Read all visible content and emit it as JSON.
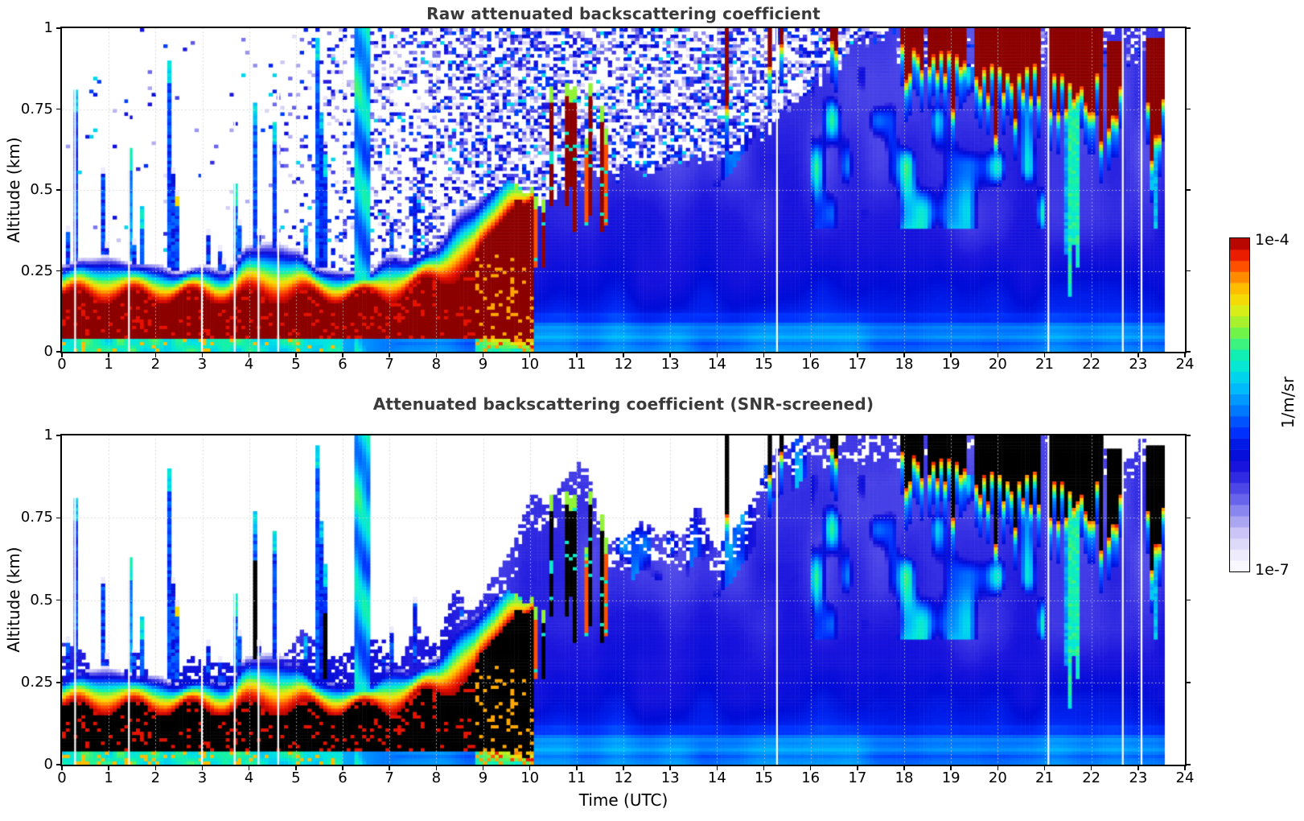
{
  "figure": {
    "xlabel": "Time (UTC)",
    "ylabel": "Altitude (km)",
    "colorbar_top_label": "1e-4",
    "colorbar_bottom_label": "1e-7",
    "colorbar_unit": "1/m/sr"
  },
  "chart_data": {
    "type": "heatmap",
    "panels": [
      {
        "title": "Raw attenuated backscattering coefficient",
        "screened": false
      },
      {
        "title": "Attenuated backscattering coefficient (SNR-screened)",
        "screened": true
      }
    ],
    "x": {
      "label": "Time (UTC)",
      "min": 0,
      "max": 24,
      "ticks": [
        0,
        1,
        2,
        3,
        4,
        5,
        6,
        7,
        8,
        9,
        10,
        11,
        12,
        13,
        14,
        15,
        16,
        17,
        18,
        19,
        20,
        21,
        22,
        23,
        24
      ]
    },
    "y": {
      "label": "Altitude (km)",
      "min": 0,
      "max": 1,
      "ticks": [
        0,
        0.25,
        0.5,
        0.75,
        1
      ]
    },
    "colorbar": {
      "scale": "log",
      "min": 1e-07,
      "max": 0.0001,
      "unit": "1/m/sr",
      "segments": 30,
      "stops": [
        [
          0,
          "#ffffff"
        ],
        [
          0.07,
          "#e4e1fa"
        ],
        [
          0.13,
          "#c0baf4"
        ],
        [
          0.19,
          "#7f7cee"
        ],
        [
          0.25,
          "#4a44e8"
        ],
        [
          0.31,
          "#1a14dd"
        ],
        [
          0.36,
          "#000cd8"
        ],
        [
          0.42,
          "#0033ff"
        ],
        [
          0.48,
          "#0077ff"
        ],
        [
          0.54,
          "#00b4ff"
        ],
        [
          0.6,
          "#00e4e4"
        ],
        [
          0.66,
          "#16f2a6"
        ],
        [
          0.72,
          "#7bf43f"
        ],
        [
          0.78,
          "#d8ee18"
        ],
        [
          0.83,
          "#ffd400"
        ],
        [
          0.88,
          "#ff9000"
        ],
        [
          0.92,
          "#ff4400"
        ],
        [
          0.96,
          "#e30e00"
        ],
        [
          1,
          "#8c0000"
        ]
      ]
    },
    "data_end_hour": 23.57,
    "gap_hours": [
      0.28,
      1.43,
      2.99,
      3.69,
      4.2,
      4.62,
      15.28,
      21.08,
      22.67,
      23.07
    ],
    "boundary_layer": {
      "top_km_by_hour": [
        0.29,
        0.27,
        0.26,
        0.28,
        0.3,
        0.3,
        0.28,
        0.28,
        0.33,
        0.45,
        0.52,
        0.55,
        0.55,
        0.55,
        0.55,
        0.55,
        0.55,
        0.55,
        0.55,
        0.55,
        0.55,
        0.55,
        0.55,
        0.55,
        0.55
      ],
      "core_top_km": 0.17,
      "core_base_km": 0.045,
      "decay_start_hour": 8.8,
      "decay_duration_h": 1.3
    },
    "solid_top_by_hour": [
      0,
      0,
      0,
      0,
      0.02,
      0.06,
      0.16,
      0.26,
      0.31,
      0.36,
      0.46,
      0.52,
      0.55,
      0.58,
      0.61,
      0.68,
      0.8,
      0.95,
      1,
      1,
      1,
      1,
      1,
      1,
      1
    ],
    "envelope_by_hour": [
      0.31,
      0.3,
      0.29,
      0.31,
      0.34,
      0.35,
      0.34,
      0.33,
      0.4,
      0.55,
      0.78,
      0.88,
      0.66,
      0.74,
      0.68,
      0.92,
      1,
      1,
      1,
      1,
      1,
      1,
      1,
      1,
      1
    ],
    "speckle": {
      "start_hour": 4.3,
      "full_hour": 9.0,
      "max_p": 0.5
    },
    "needles": {
      "sparse": [
        0.1,
        3.5
      ],
      "active": [
        3.5,
        6.26
      ],
      "dense_from": 4.9
    },
    "green_column": [
      6.28,
      6.56
    ],
    "plumes": {
      "minor": [
        9.2,
        10.3
      ],
      "main": [
        10.3,
        11.78
      ]
    },
    "clouds": [
      {
        "t0": 14.13,
        "t1": 14.22,
        "base": 0.87,
        "amp": 0.02,
        "top": 1.0
      },
      {
        "t0": 15.08,
        "t1": 15.2,
        "base": 0.9,
        "amp": 0.02,
        "top": 1.0
      },
      {
        "t0": 15.3,
        "t1": 15.44,
        "base": 0.93,
        "amp": 0.02,
        "top": 1.0
      },
      {
        "t0": 16.45,
        "t1": 16.62,
        "base": 0.95,
        "amp": 0.02,
        "top": 1.0
      },
      {
        "t0": 17.9,
        "t1": 18.42,
        "base": 0.93,
        "amp": 0.03,
        "top": 1.0
      },
      {
        "t0": 18.5,
        "t1": 19.35,
        "base": 0.895,
        "amp": 0.035,
        "top": 1.0
      },
      {
        "t0": 19.5,
        "t1": 20.9,
        "base": 0.84,
        "amp": 0.05,
        "top": 1.0
      },
      {
        "t0": 21.12,
        "t1": 22.27,
        "base": 0.8,
        "amp": 0.06,
        "top": 1.0
      },
      {
        "t0": 22.3,
        "t1": 22.66,
        "base": 0.77,
        "amp": 0.05,
        "top": 0.96
      },
      {
        "t0": 23.15,
        "t1": 23.55,
        "base": 0.73,
        "amp": 0.06,
        "top": 0.97
      }
    ],
    "precip": [
      {
        "t0": 21.45,
        "t1": 21.85,
        "z_end": 0.12,
        "strong": true
      },
      {
        "t0": 22.33,
        "t1": 22.62,
        "z_end": 0.28,
        "strong": false
      },
      {
        "t0": 23.28,
        "t1": 23.5,
        "z_end": 0.3,
        "strong": false
      }
    ]
  }
}
